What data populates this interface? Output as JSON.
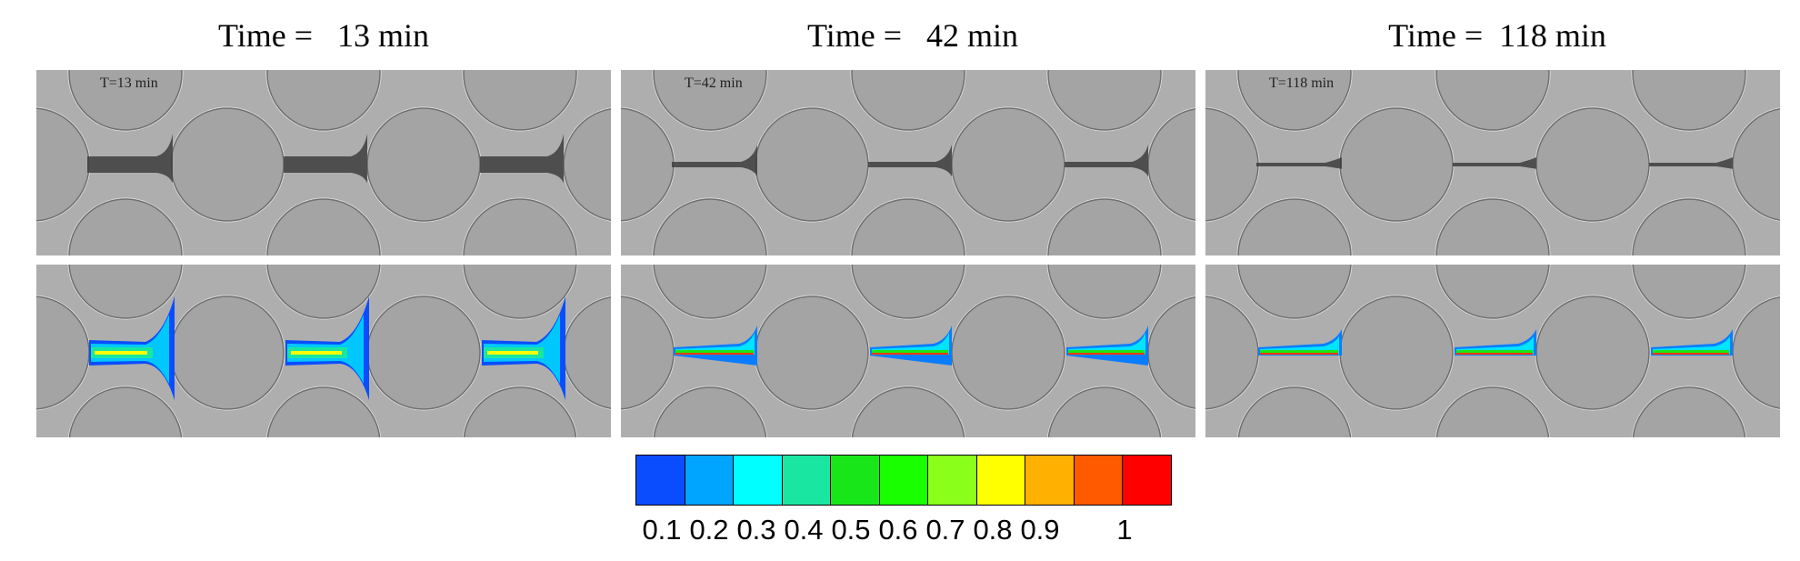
{
  "columns": [
    {
      "title": "Time =   13 min",
      "stamp": "T=13 min",
      "stage": 0
    },
    {
      "title": "Time =   42 min",
      "stamp": "T=42 min",
      "stage": 1
    },
    {
      "title": "Time =  118 min",
      "stamp": "T=118 min",
      "stage": 2
    }
  ],
  "colorbar": {
    "colors": [
      "#0a4dff",
      "#00a5ff",
      "#00ffff",
      "#19e6a0",
      "#19e619",
      "#19ff00",
      "#8aff19",
      "#ffff00",
      "#ffb000",
      "#ff5a00",
      "#ff0000"
    ],
    "labels": [
      "0.1",
      "0.2",
      "0.3",
      "0.4",
      "0.5",
      "0.6",
      "0.7",
      "0.8",
      "0.9",
      "1"
    ]
  }
}
